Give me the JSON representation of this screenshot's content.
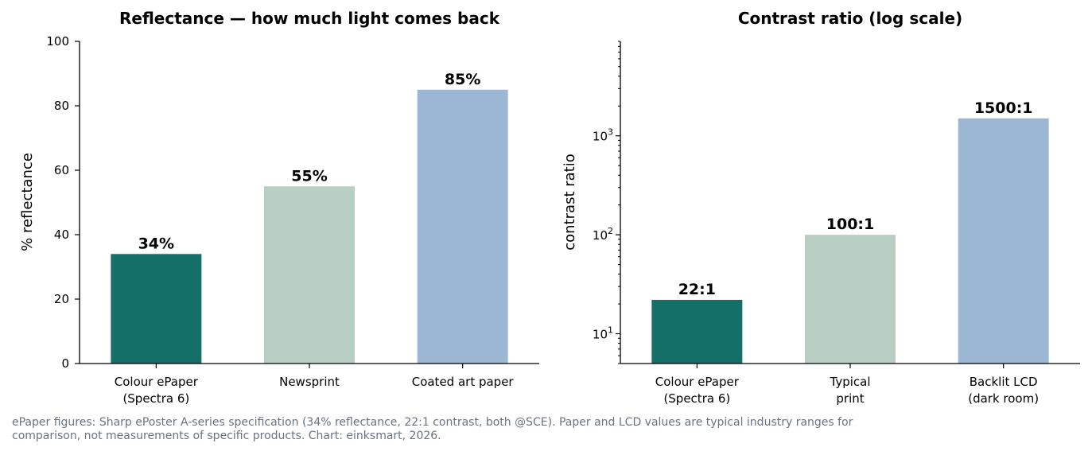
{
  "colors": {
    "colour_epaper": "#156f69",
    "newsprint": "#b9cfc3",
    "coated_paper": "#9cb7d3",
    "footnote": "#6b7280"
  },
  "footnote": "ePaper figures: Sharp ePoster A-series specification (34% reflectance, 22:1 contrast, both @SCE). Paper and LCD values are typical industry ranges for comparison, not measurements of specific products. Chart: einksmart, 2026.",
  "chart_data": [
    {
      "type": "bar",
      "title": "Reflectance — how much light comes back",
      "ylabel": "% reflectance",
      "xlabel": "",
      "categories": [
        [
          "Colour ePaper",
          "(Spectra 6)"
        ],
        [
          "Newsprint"
        ],
        [
          "Coated art paper"
        ]
      ],
      "values": [
        34,
        55,
        85
      ],
      "value_labels": [
        "34%",
        "55%",
        "85%"
      ],
      "colors": [
        "#156f69",
        "#b9cfc3",
        "#9cb7d3"
      ],
      "ylim": [
        0,
        100
      ],
      "yticks": [
        0,
        20,
        40,
        60,
        80,
        100
      ],
      "ytick_labels": [
        "0",
        "20",
        "40",
        "60",
        "80",
        "100"
      ],
      "yscale": "linear",
      "grid": false
    },
    {
      "type": "bar",
      "title": "Contrast ratio (log scale)",
      "ylabel": "contrast ratio",
      "xlabel": "",
      "categories": [
        [
          "Colour ePaper",
          "(Spectra 6)"
        ],
        [
          "Typical",
          "print"
        ],
        [
          "Backlit LCD",
          "(dark room)"
        ]
      ],
      "values": [
        22,
        100,
        1500
      ],
      "value_labels": [
        "22:1",
        "100:1",
        "1500:1"
      ],
      "colors": [
        "#156f69",
        "#b9cfc3",
        "#9cb7d3"
      ],
      "ylim": [
        5,
        9000
      ],
      "yticks": [
        10,
        100,
        1000
      ],
      "ytick_labels": [
        [
          "10",
          "1"
        ],
        [
          "10",
          "2"
        ],
        [
          "10",
          "3"
        ]
      ],
      "yscale": "log",
      "grid": false
    }
  ]
}
